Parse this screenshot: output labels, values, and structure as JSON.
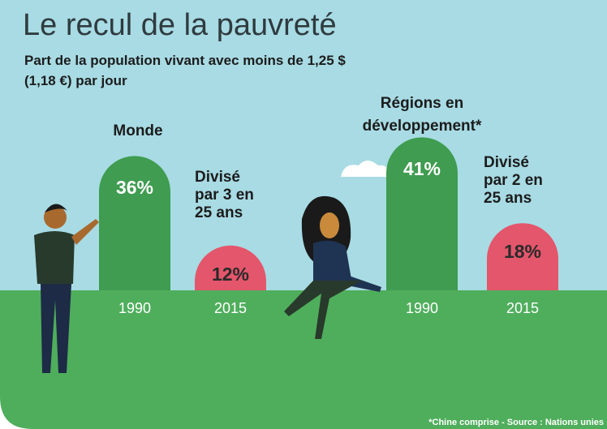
{
  "title": "Le recul de la pauvreté",
  "subtitle": "Part de la population vivant avec moins de 1,25 $ (1,18 €) par jour",
  "source": "*Chine comprise - Source : Nations unies",
  "chart_data": [
    {
      "type": "bar",
      "title": "Monde",
      "categories": [
        "1990",
        "2015"
      ],
      "values": [
        36,
        12
      ],
      "value_labels": [
        "36%",
        "12%"
      ],
      "colors": [
        "#3f9c50",
        "#e4566b"
      ],
      "annotation": "Divisé par 3 en 25 ans"
    },
    {
      "type": "bar",
      "title": "Régions en développement*",
      "categories": [
        "1990",
        "2015"
      ],
      "values": [
        41,
        18
      ],
      "value_labels": [
        "41%",
        "18%"
      ],
      "colors": [
        "#3f9c50",
        "#e4566b"
      ],
      "annotation": "Divisé par 2 en 25 ans"
    }
  ]
}
